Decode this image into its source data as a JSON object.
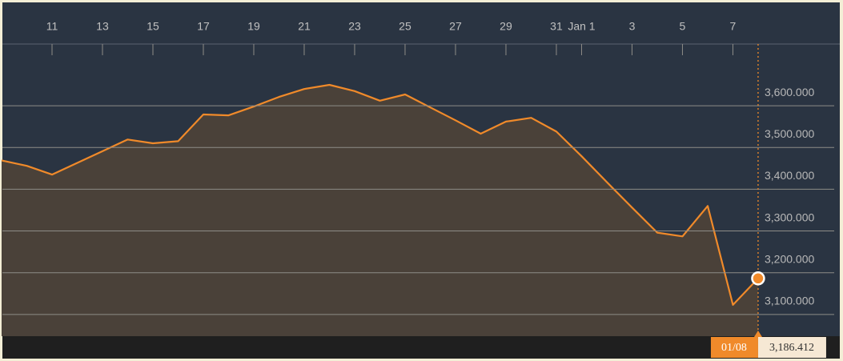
{
  "chart_data": {
    "type": "area-line",
    "color": "#f08a2a",
    "fill": "#4a4139",
    "grid": true,
    "x": [
      9,
      10,
      11,
      12,
      13,
      14,
      15,
      16,
      17,
      18,
      19,
      20,
      21,
      22,
      23,
      24,
      25,
      26,
      27,
      28,
      29,
      30,
      31,
      32,
      33,
      34,
      35,
      36,
      37,
      38,
      39
    ],
    "series": [
      {
        "values": [
          3469,
          3456,
          3435,
          3463,
          3491,
          3519,
          3510,
          3515,
          3579,
          3577,
          3598,
          3621,
          3640,
          3650,
          3635,
          3612,
          3627,
          3596,
          3565,
          3533,
          3562,
          3571,
          3538,
          3479,
          3417,
          3356,
          3296,
          3287,
          3360,
          3123,
          3186.412
        ]
      }
    ],
    "xlim": [
      9,
      42.1
    ],
    "xticks": [
      11,
      13,
      15,
      17,
      19,
      21,
      23,
      25,
      27,
      29,
      31,
      {
        "value": 32,
        "label": "Jan 1"
      },
      {
        "value": 34,
        "label": "3"
      },
      {
        "value": 36,
        "label": "5"
      },
      {
        "value": 38,
        "label": "7"
      }
    ],
    "ylim": [
      3048,
      3719
    ],
    "yticks": [
      {
        "value": 3100,
        "label": "3,100.000"
      },
      {
        "value": 3200,
        "label": "3,200.000"
      },
      {
        "value": 3300,
        "label": "3,300.000"
      },
      {
        "value": 3400,
        "label": "3,400.000"
      },
      {
        "value": 3500,
        "label": "3,500.000"
      },
      {
        "value": 3600,
        "label": "3,600.000"
      }
    ],
    "highlight": {
      "x_label": "01/08",
      "value_label": "3,186.412"
    }
  }
}
